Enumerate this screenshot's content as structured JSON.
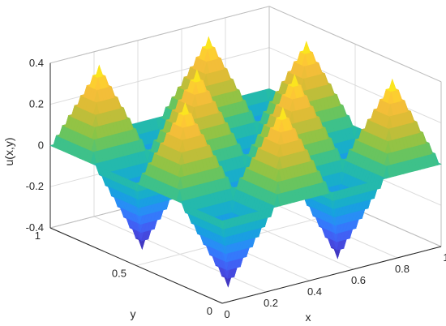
{
  "chart_data": {
    "type": "surface",
    "title": "",
    "function": "0.4 * sin(...) style pyramidal checkerboard",
    "grid_size": 4,
    "surface": {
      "description_peaks": [
        [
          0.125,
          0.125,
          -0.4
        ],
        [
          0.125,
          0.375,
          0.4
        ],
        [
          0.125,
          0.625,
          -0.4
        ],
        [
          0.125,
          0.875,
          0.4
        ],
        [
          0.375,
          0.125,
          0.4
        ],
        [
          0.375,
          0.375,
          -0.4
        ],
        [
          0.375,
          0.625,
          0.4
        ],
        [
          0.375,
          0.875,
          -0.4
        ],
        [
          0.625,
          0.125,
          -0.4
        ],
        [
          0.625,
          0.375,
          0.4
        ],
        [
          0.625,
          0.625,
          -0.4
        ],
        [
          0.625,
          0.875,
          0.4
        ],
        [
          0.875,
          0.125,
          0.4
        ],
        [
          0.875,
          0.375,
          -0.4
        ],
        [
          0.875,
          0.625,
          0.4
        ],
        [
          0.875,
          0.875,
          -0.4
        ]
      ]
    },
    "xlabel": "x",
    "ylabel": "y",
    "zlabel": "u(x,y)",
    "xlim": [
      0,
      1
    ],
    "ylim": [
      0,
      1
    ],
    "zlim": [
      -0.4,
      0.4
    ],
    "xticks": [
      "0",
      "0.2",
      "0.4",
      "0.6",
      "0.8",
      "1"
    ],
    "yticks": [
      "0",
      "0.5",
      "1"
    ],
    "zticks": [
      "-0.4",
      "-0.2",
      "0",
      "0.2",
      "0.4"
    ],
    "colormap": [
      "#3e26a8",
      "#4755f0",
      "#2f85ff",
      "#13a8d8",
      "#29bf9f",
      "#7ec54a",
      "#d3bb34",
      "#fdbf3b",
      "#f9fb0e"
    ],
    "grid": true
  }
}
